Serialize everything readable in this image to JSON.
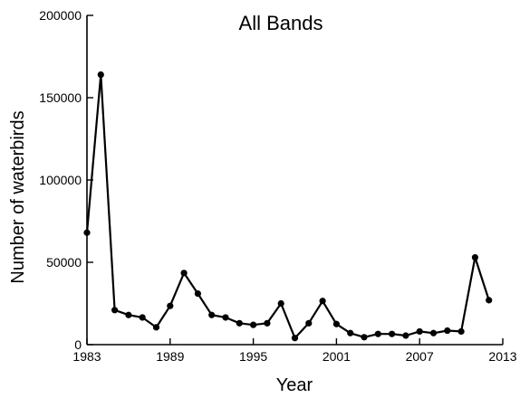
{
  "chart_data": {
    "type": "line",
    "title": "All Bands",
    "xlabel": "Year",
    "ylabel": "Number of waterbirds",
    "xlim": [
      1983,
      2013
    ],
    "ylim": [
      0,
      200000
    ],
    "x_ticks": [
      1983,
      1989,
      1995,
      2001,
      2007,
      2013
    ],
    "y_ticks": [
      0,
      50000,
      100000,
      150000,
      200000
    ],
    "grid": false,
    "color": "#000000",
    "series": [
      {
        "x": [
          1983,
          1984,
          1985,
          1986,
          1987,
          1988,
          1989,
          1990,
          1991,
          1992,
          1993,
          1994,
          1995,
          1996,
          1997,
          1998,
          1999,
          2000,
          2001,
          2002,
          2003,
          2004,
          2005,
          2006,
          2007,
          2008,
          2009,
          2010,
          2011,
          2012
        ],
        "values": [
          68000,
          164000,
          21000,
          18000,
          16500,
          10500,
          23500,
          43500,
          31000,
          18000,
          16500,
          13000,
          12000,
          13000,
          25000,
          4000,
          13000,
          26500,
          12500,
          7000,
          4500,
          6500,
          6500,
          5500,
          8000,
          7000,
          8500,
          8000,
          53000,
          27000
        ]
      }
    ]
  }
}
